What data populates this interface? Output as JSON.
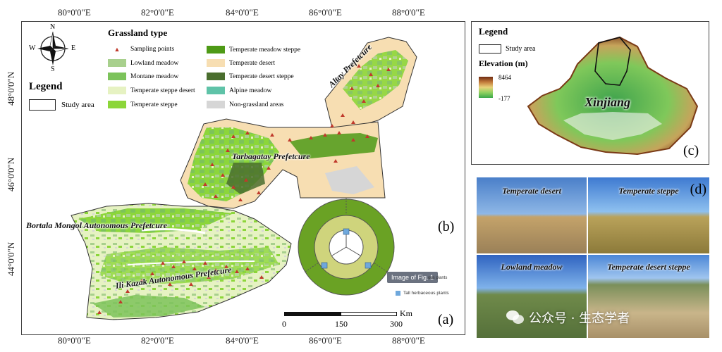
{
  "map_a": {
    "top_lon_labels": [
      "80°0'0\"E",
      "82°0'0\"E",
      "84°0'0\"E",
      "86°0'0\"E",
      "88°0'0\"E"
    ],
    "bottom_lon_labels": [
      "80°0'0\"E",
      "82°0'0\"E",
      "84°0'0\"E",
      "86°0'0\"E",
      "88°0'0\"E"
    ],
    "lat_labels": [
      "48°0'0\"N",
      "46°0'0\"N",
      "44°0'0\"N"
    ],
    "compass": {
      "n": "N",
      "s": "S",
      "e": "E",
      "w": "W"
    },
    "legend_heading": "Legend",
    "study_area_label": "Study area",
    "grassland_title": "Grassland type",
    "grassland_items": [
      {
        "label": "Sampling points",
        "color": "#c0392b"
      },
      {
        "label": "Lowland meadow",
        "color": "#a8d08d"
      },
      {
        "label": "Montane meadow",
        "color": "#7cc35b"
      },
      {
        "label": "Temperate steppe desert",
        "color": "#e6f2c2"
      },
      {
        "label": "Temperate steppe",
        "color": "#8cd63a"
      },
      {
        "label": "Temperate meadow steppe",
        "color": "#4e9a16"
      },
      {
        "label": "Temperate desert",
        "color": "#f7deb2"
      },
      {
        "label": "Temperate desert steppe",
        "color": "#4a6e2e"
      },
      {
        "label": "Alpine meadow",
        "color": "#5fc3a8"
      },
      {
        "label": "Non-grassland areas",
        "color": "#d6d6d6"
      }
    ],
    "prefectures": [
      "Altay Prefetcure",
      "Tarbagatay Prefetcure",
      "Bortala Mongol Autonomous Prefetcure",
      "Ili Kazak Autonomous Prefetcure"
    ],
    "scale_unit": "Km",
    "scale_ticks": [
      "0",
      "150",
      "300"
    ],
    "panel_letter_a": "(a)",
    "panel_letter_b": "(b)",
    "tooltip_text": "Image of Fig. 1",
    "inset_legend_partial": "ous plants",
    "inset_legend_tall": "Tall herbaceous plants"
  },
  "map_c": {
    "legend_heading": "Legend",
    "study_area_label": "Study area",
    "elevation_title": "Elevation (m)",
    "elev_max": "8464",
    "elev_min": "-177",
    "region_label": "Xinjiang",
    "panel_letter": "(c)"
  },
  "photos_d": {
    "panel_letter": "(d)",
    "labels": [
      "Temperate desert",
      "Temperate steppe",
      "Lowland meadow",
      "Temperate desert steppe"
    ]
  },
  "watermark": {
    "text": "公众号 · 生态学者"
  }
}
